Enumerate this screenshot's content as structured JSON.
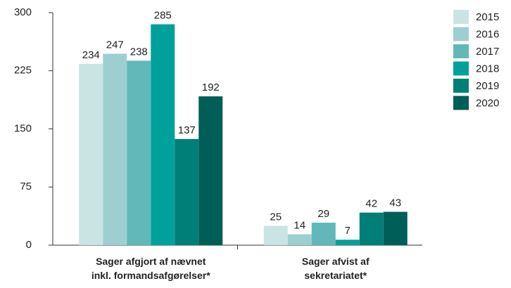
{
  "chart_data": {
    "type": "bar",
    "categories": [
      "Sager afgjort af nævnet\ninkl. formandsafgørelser*",
      "Sager afvist af\nsekretariatet*"
    ],
    "series": [
      {
        "name": "2015",
        "color": "#c9e4e3",
        "values": [
          234,
          25
        ]
      },
      {
        "name": "2016",
        "color": "#9dcfd1",
        "values": [
          247,
          14
        ]
      },
      {
        "name": "2017",
        "color": "#62b8b8",
        "values": [
          238,
          29
        ]
      },
      {
        "name": "2018",
        "color": "#00a19a",
        "values": [
          285,
          7
        ]
      },
      {
        "name": "2019",
        "color": "#007f78",
        "values": [
          137,
          42
        ]
      },
      {
        "name": "2020",
        "color": "#005e58",
        "values": [
          192,
          43
        ]
      }
    ],
    "ylim": [
      0,
      300
    ],
    "yticks": [
      0,
      75,
      150,
      225,
      300
    ],
    "grid": false,
    "legend": "right"
  }
}
